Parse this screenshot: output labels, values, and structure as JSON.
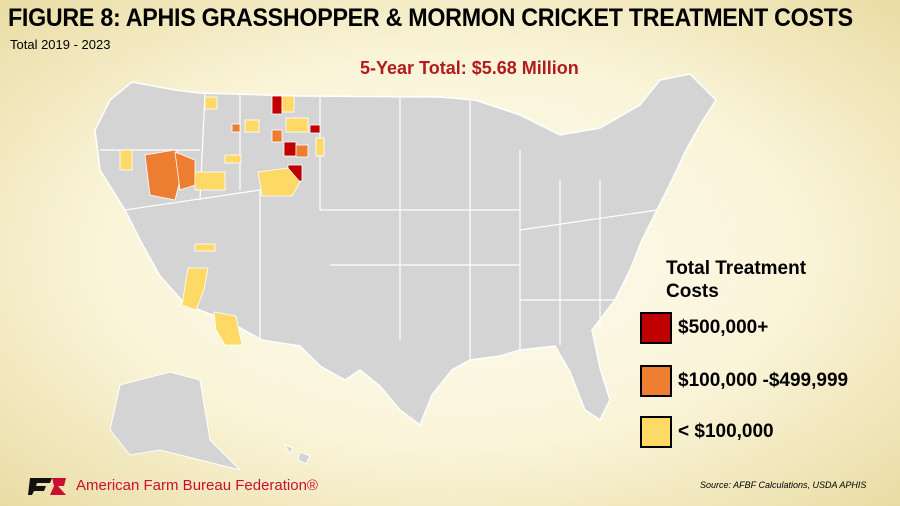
{
  "header": {
    "title": "FIGURE 8: APHIS GRASSHOPPER & MORMON CRICKET TREATMENT COSTS",
    "subtitle": "Total 2019 - 2023"
  },
  "total": "5-Year Total: $5.68 Million",
  "legend": {
    "title": "Total Treatment Costs",
    "items": [
      {
        "label": "$500,000+",
        "color": "#c00000"
      },
      {
        "label": "$100,000 -$499,999",
        "color": "#ed7d31"
      },
      {
        "label": "< $100,000",
        "color": "#ffd966"
      }
    ]
  },
  "source": "Source: AFBF Calculations, USDA APHIS",
  "logo": {
    "text": "American Farm Bureau Federation®"
  }
}
